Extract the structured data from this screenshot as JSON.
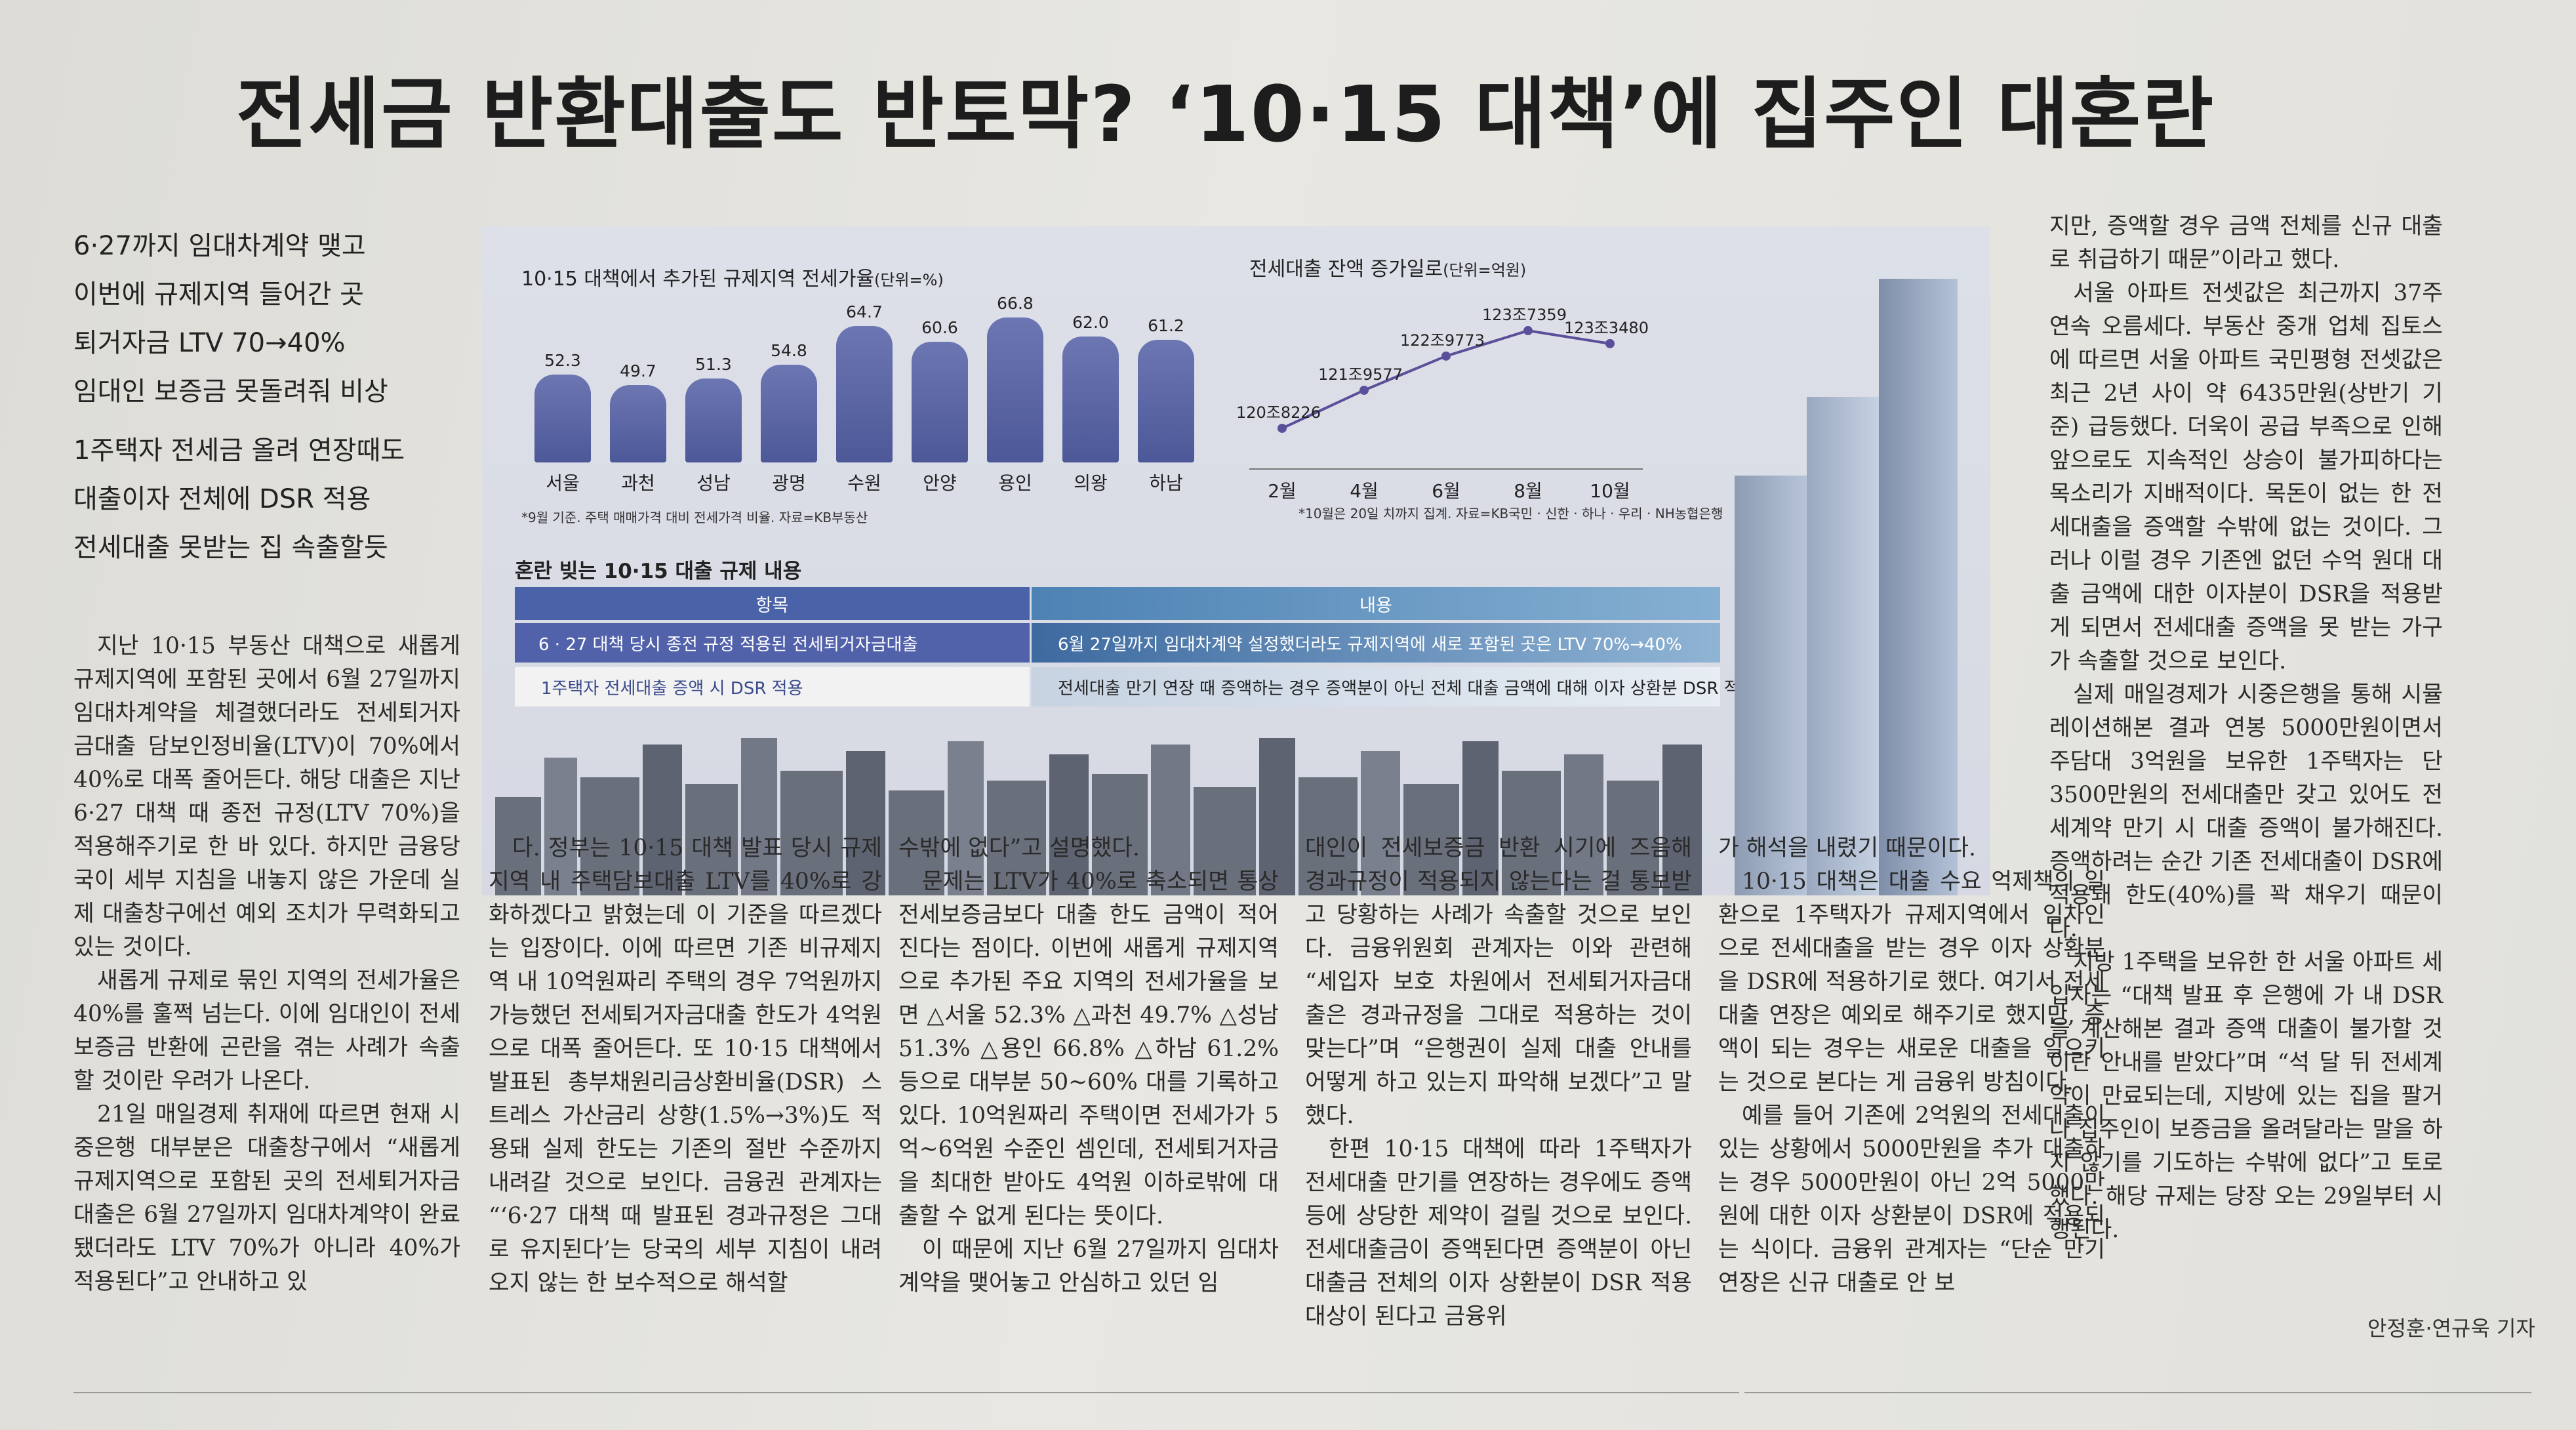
{
  "headline": "전세금 반환대출도 반토막? ‘10·15 대책’에 집주인 대혼란",
  "subheads": [
    "6·27까지 임대차계약 맺고",
    "이번에 규제지역 들어간 곳",
    "퇴거자금 LTV 70→40%",
    "임대인 보증금 못돌려줘 비상",
    "1주택자 전세금 올려 연장때도",
    "대출이자 전체에 DSR 적용",
    "전세대출 못받는 집 속출할듯"
  ],
  "graphic": {
    "chart_data": [
      {
        "type": "bar",
        "title": "10·15 대책에서 추가된 규제지역 전세가율",
        "unit_label": "(단위=%)",
        "categories": [
          "서울",
          "과천",
          "성남",
          "광명",
          "수원",
          "안양",
          "용인",
          "의왕",
          "하남"
        ],
        "values": [
          52.3,
          49.7,
          51.3,
          54.8,
          64.7,
          60.6,
          66.8,
          62.0,
          61.2
        ],
        "value_labels": [
          "52.3",
          "49.7",
          "51.3",
          "54.8",
          "64.7",
          "60.6",
          "66.8",
          "62.0",
          "61.2"
        ],
        "note": "*9월 기준. 주택 매매가격 대비 전세가격 비율. 자료=KB부동산"
      },
      {
        "type": "line",
        "title": "전세대출 잔액 증가일로",
        "unit_label": "(단위=억원)",
        "x": [
          "2월",
          "4월",
          "6월",
          "8월",
          "10월"
        ],
        "values": [
          1208226,
          1219577,
          1229773,
          1237359,
          1233480
        ],
        "value_labels": [
          "120조8226",
          "121조9577",
          "122조9773",
          "123조7359",
          "123조3480"
        ],
        "note": "*10월은 20일 치까지 집계. 자료=KB국민 · 신한 · 하나 · 우리 · NH농협은행"
      }
    ],
    "table": {
      "title": "혼란 빚는 10·15 대출 규제 내용",
      "headers": [
        "항목",
        "내용"
      ],
      "rows": [
        [
          "6 · 27 대책 당시 종전 규정 적용된 전세퇴거자금대출",
          "6월 27일까지 임대차계약 설정했더라도 규제지역에 새로 포함된 곳은 LTV 70%→40%"
        ],
        [
          "1주택자 전세대출 증액 시 DSR 적용",
          "전세대출 만기 연장 때 증액하는 경우 증액분이 아닌 전체 대출 금액에 대해 이자 상환분 DSR 적용"
        ]
      ]
    }
  },
  "columns": [
    [
      "지난 10·15 부동산 대책으로 새롭게 규제지역에 포함된 곳에서 6월 27일까지 임대차계약을 체결했더라도 전세퇴거자금대출 담보인정비율(LTV)이 70%에서 40%로 대폭 줄어든다. 해당 대출은 지난 6·27 대책 때 종전 규정(LTV 70%)을 적용해주기로 한 바 있다. 하지만 금융당국이 세부 지침을 내놓지 않은 가운데 실제 대출창구에선 예외 조치가 무력화되고 있는 것이다.",
      "새롭게 규제로 묶인 지역의 전세가율은 40%를 훌쩍 넘는다. 이에 임대인이 전세보증금 반환에 곤란을 겪는 사례가 속출할 것이란 우려가 나온다.",
      "21일 매일경제 취재에 따르면 현재 시중은행 대부분은 대출창구에서 “새롭게 규제지역으로 포함된 곳의 전세퇴거자금대출은 6월 27일까지 임대차계약이 완료됐더라도 LTV 70%가 아니라 40%가 적용된다”고 안내하고 있"
    ],
    [
      "다. 정부는 10·15 대책 발표 당시 규제지역 내 주택담보대출 LTV를 40%로 강화하겠다고 밝혔는데 이 기준을 따르겠다는 입장이다. 이에 따르면 기존 비규제지역 내 10억원짜리 주택의 경우 7억원까지 가능했던 전세퇴거자금대출 한도가 4억원으로 대폭 줄어든다. 또 10·15 대책에서 발표된 총부채원리금상환비율(DSR) 스트레스 가산금리 상향(1.5%→3%)도 적용돼 실제 한도는 기존의 절반 수준까지 내려갈 것으로 보인다. 금융권 관계자는 “‘6·27 대책 때 발표된 경과규정은 그대로 유지된다’는 당국의 세부 지침이 내려오지 않는 한 보수적으로 해석할"
    ],
    [
      "수밖에 없다”고 설명했다.",
      "문제는 LTV가 40%로 축소되면 통상 전세보증금보다 대출 한도 금액이 적어진다는 점이다. 이번에 새롭게 규제지역으로 추가된 주요 지역의 전세가율을 보면 △서울 52.3% △과천 49.7% △성남 51.3% △용인 66.8% △하남 61.2% 등으로 대부분 50~60% 대를 기록하고 있다. 10억원짜리 주택이면 전세가가 5억~6억원 수준인 셈인데, 전세퇴거자금을 최대한 받아도 4억원 이하로밖에 대출할 수 없게 된다는 뜻이다.",
      "이 때문에 지난 6월 27일까지 임대차계약을 맺어놓고 안심하고 있던 임"
    ],
    [
      "대인이 전세보증금 반환 시기에 즈음해 경과규정이 적용되지 않는다는 걸 통보받고 당황하는 사례가 속출할 것으로 보인다. 금융위원회 관계자는 이와 관련해 “세입자 보호 차원에서 전세퇴거자금대출은 경과규정을 그대로 적용하는 것이 맞는다”며 “은행권이 실제 대출 안내를 어떻게 하고 있는지 파악해 보겠다”고 말했다.",
      "한편 10·15 대책에 따라 1주택자가 전세대출 만기를 연장하는 경우에도 증액 등에 상당한 제약이 걸릴 것으로 보인다. 전세대출금이 증액된다면 증액분이 아닌 대출금 전체의 이자 상환분이 DSR 적용 대상이 된다고 금융위"
    ],
    [
      "가 해석을 내렸기 때문이다.",
      "10·15 대책은 대출 수요 억제책의 일환으로 1주택자가 규제지역에서 임차인으로 전세대출을 받는 경우 이자 상환분을 DSR에 적용하기로 했다. 여기서 전세대출 연장은 예외로 해주기로 했지만, 증액이 되는 경우는 새로운 대출을 일으키는 것으로 본다는 게 금융위 방침이다.",
      "예를 들어 기존에 2억원의 전세대출이 있는 상황에서 5000만원을 추가 대출하는 경우 5000만원이 아닌 2억 5000만원에 대한 이자 상환분이 DSR에 적용되는 식이다. 금융위 관계자는 “단순 만기 연장은 신규 대출로 안 보"
    ],
    [
      "지만, 증액할 경우 금액 전체를 신규 대출로 취급하기 때문”이라고 했다.",
      "서울 아파트 전셋값은 최근까지 37주 연속 오름세다. 부동산 중개 업체 집토스에 따르면 서울 아파트 국민평형 전셋값은 최근 2년 사이 약 6435만원(상반기 기준) 급등했다. 더욱이 공급 부족으로 인해 앞으로도 지속적인 상승이 불가피하다는 목소리가 지배적이다. 목돈이 없는 한 전세대출을 증액할 수밖에 없는 것이다. 그러나 이럴 경우 기존엔 없던 수억 원대 대출 금액에 대한 이자분이 DSR을 적용받게 되면서 전세대출 증액을 못 받는 가구가 속출할 것으로 보인다.",
      "실제 매일경제가 시중은행을 통해 시뮬레이션해본 결과 연봉 5000만원이면서 주담대 3억원을 보유한 1주택자는 단 3500만원의 전세대출만 갖고 있어도 전세계약 만기 시 대출 증액이 불가해진다. 증액하려는 순간 기존 전세대출이 DSR에 적용돼 한도(40%)를 꽉 채우기 때문이다.",
      "지방 1주택을 보유한 한 서울 아파트 세입자는 “대책 발표 후 은행에 가 내 DSR을 계산해본 결과 증액 대출이 불가할 것이란 안내를 받았다”며 “석 달 뒤 전세계약이 만료되는데, 지방에 있는 집을 팔거나 집주인이 보증금을 올려달라는 말을 하지 않기를 기도하는 수밖에 없다”고 토로했다. 해당 규제는 당장 오는 29일부터 시행된다."
    ]
  ],
  "byline": "안정훈·연규욱 기자"
}
